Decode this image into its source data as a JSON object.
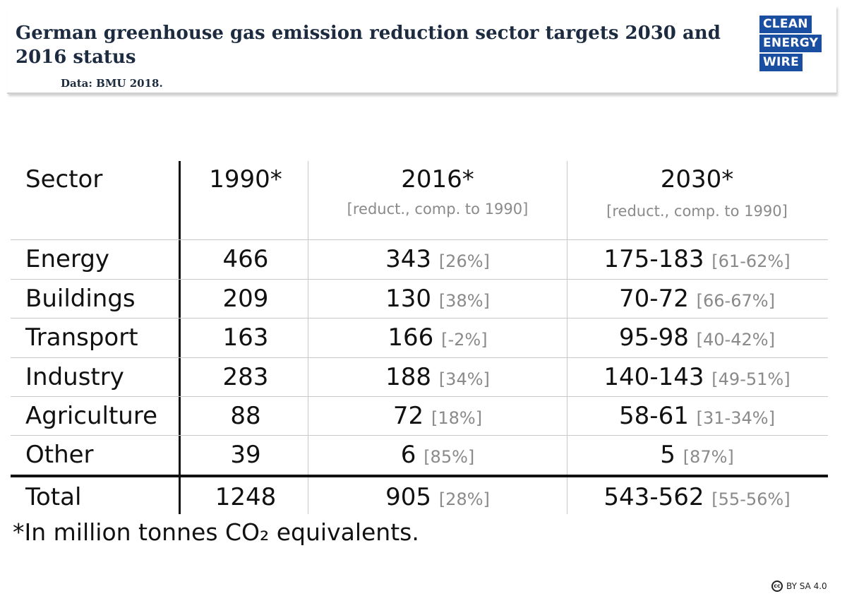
{
  "header": {
    "title": "German greenhouse gas emission reduction sector targets 2030 and 2016 status",
    "source": "Data: BMU 2018.",
    "logo_lines": [
      "CLEAN",
      "ENERGY",
      "WIRE"
    ]
  },
  "table": {
    "columns": {
      "sector": "Sector",
      "y1990": "1990*",
      "y2016": "2016*",
      "y2016_sub": "[reduct., comp. to 1990]",
      "y2030": "2030*",
      "y2030_sub": "[reduct., comp. to 1990]"
    },
    "rows": [
      {
        "sector": "Energy",
        "v1990": "466",
        "v2016": "343",
        "p2016": "[26%]",
        "v2030": "175-183",
        "p2030": "[61-62%]"
      },
      {
        "sector": "Buildings",
        "v1990": "209",
        "v2016": "130",
        "p2016": "[38%]",
        "v2030": "70-72",
        "p2030": "[66-67%]"
      },
      {
        "sector": "Transport",
        "v1990": "163",
        "v2016": "166",
        "p2016": "[-2%]",
        "v2030": "95-98",
        "p2030": "[40-42%]"
      },
      {
        "sector": "Industry",
        "v1990": "283",
        "v2016": "188",
        "p2016": "[34%]",
        "v2030": "140-143",
        "p2030": "[49-51%]"
      },
      {
        "sector": "Agriculture",
        "v1990": "88",
        "v2016": "72",
        "p2016": "[18%]",
        "v2030": "58-61",
        "p2030": "[31-34%]"
      },
      {
        "sector": "Other",
        "v1990": "39",
        "v2016": "6",
        "p2016": "[85%]",
        "v2030": "5",
        "p2030": "[87%]"
      }
    ],
    "total": {
      "sector": "Total",
      "v1990": "1248",
      "v2016": "905",
      "p2016": "[28%]",
      "v2030": "543-562",
      "p2030": "[55-56%]"
    }
  },
  "footnote": "*In million tonnes CO₂ equivalents.",
  "license": "BY SA 4.0",
  "license_icon": "cc-icon",
  "colors": {
    "title": "#1c2b3f",
    "logo_bg": "#1a4ea0",
    "muted": "#8a8a8a"
  }
}
